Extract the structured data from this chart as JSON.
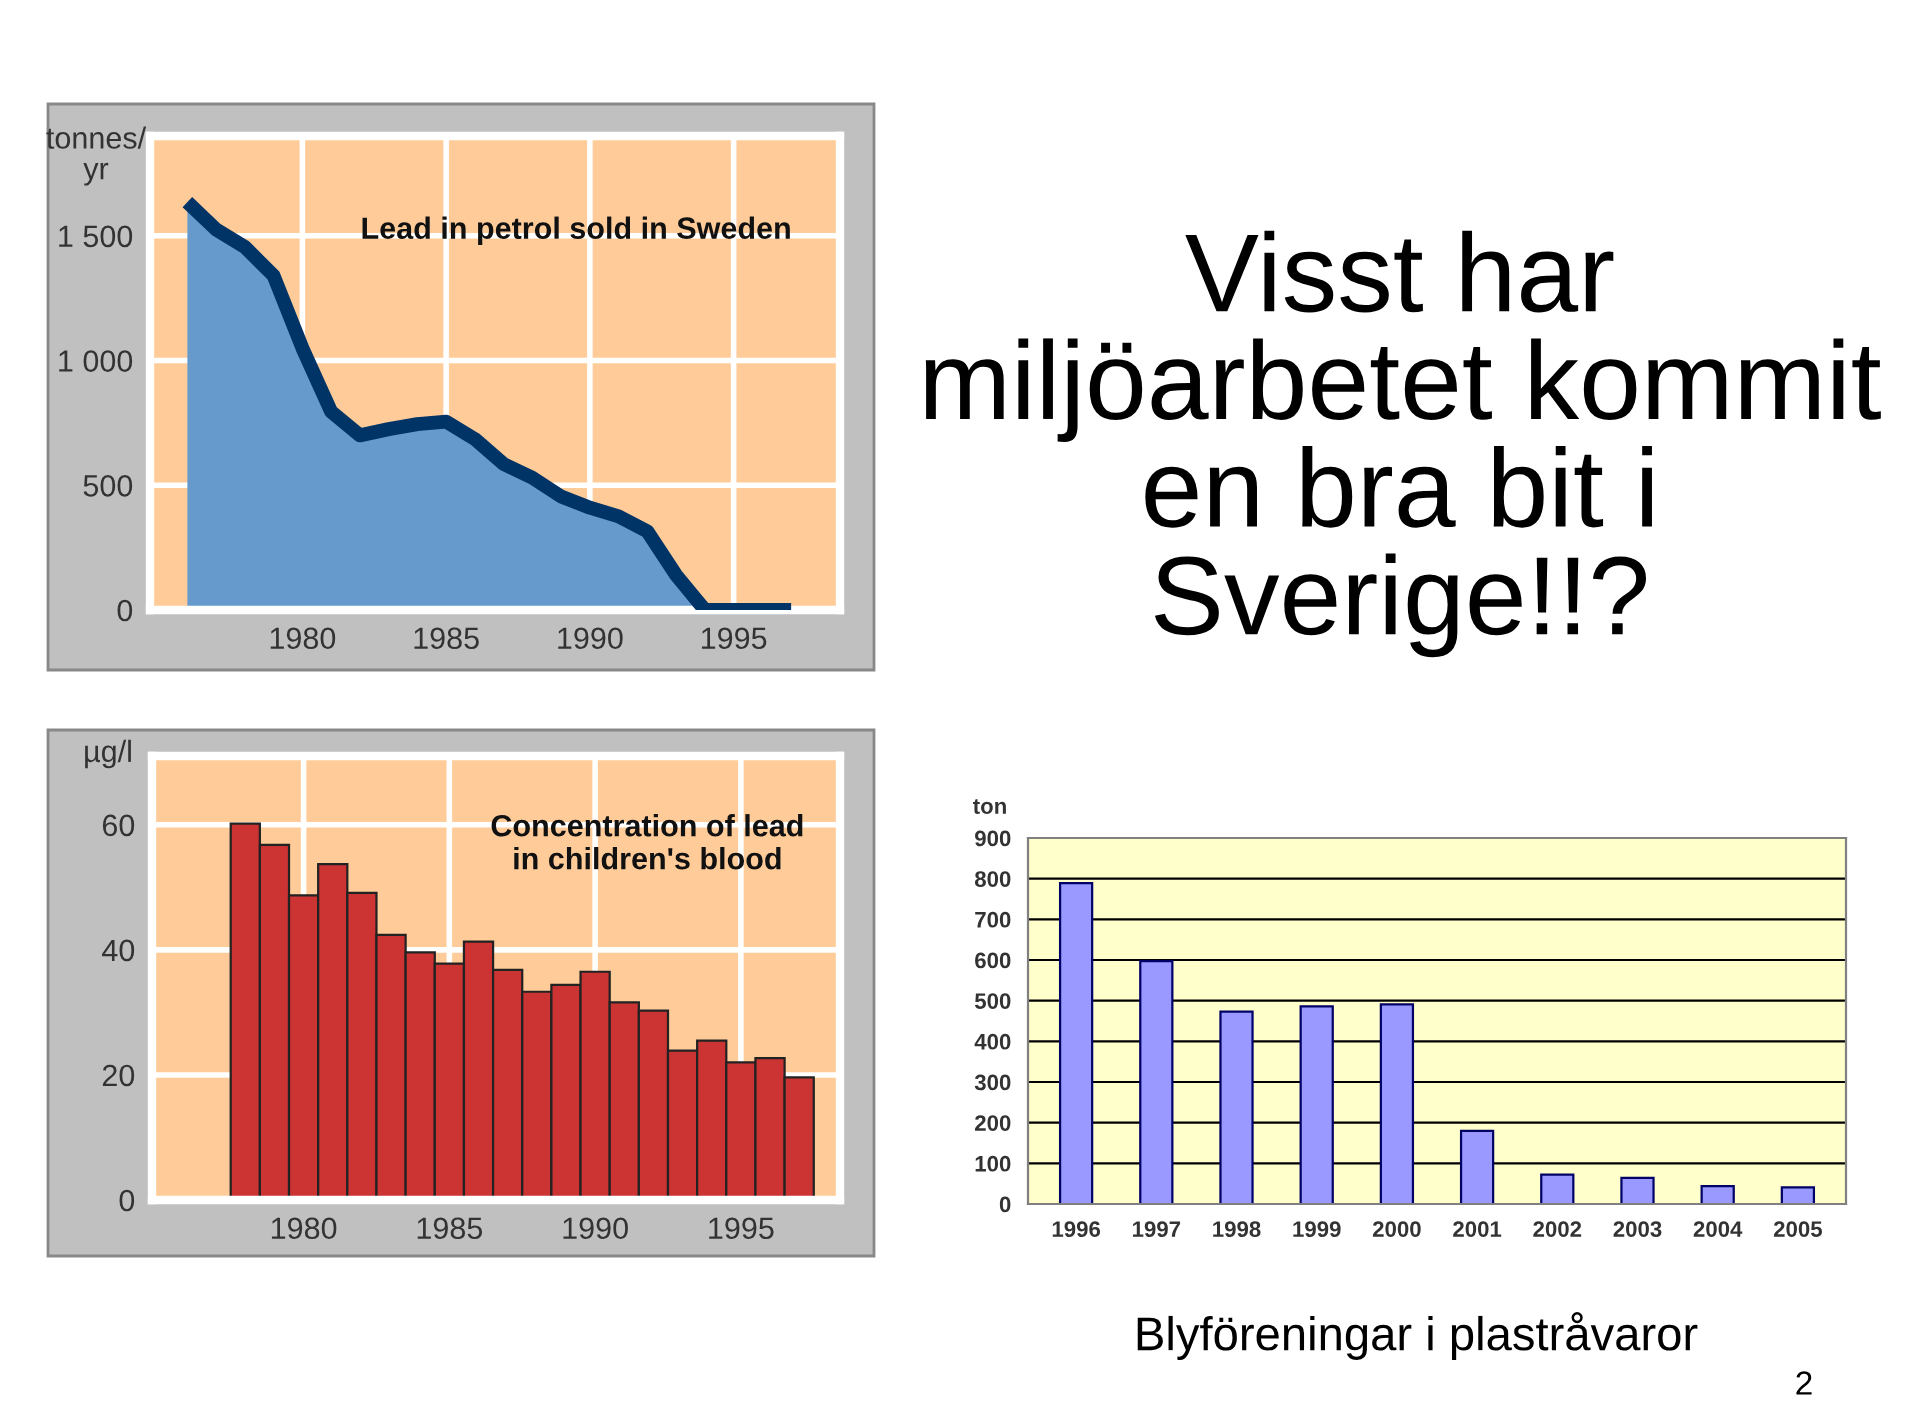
{
  "chart_data": [
    {
      "type": "area",
      "title": "Lead in petrol sold in Sweden",
      "ylabel": "tonnes/\nyr",
      "x": [
        1976,
        1977,
        1978,
        1979,
        1980,
        1981,
        1982,
        1983,
        1984,
        1985,
        1986,
        1987,
        1988,
        1989,
        1990,
        1991,
        1992,
        1993,
        1994,
        1995,
        1996,
        1997
      ],
      "series": [
        {
          "color": "#6699cc",
          "values": [
            1635,
            1525,
            1455,
            1340,
            1050,
            795,
            700,
            725,
            745,
            755,
            685,
            585,
            530,
            455,
            410,
            375,
            315,
            140,
            0,
            0,
            0,
            0
          ]
        }
      ],
      "xlim": [
        1974.7,
        1998.7
      ],
      "ylim": [
        0,
        1900
      ],
      "xticks": [
        1980,
        1985,
        1990,
        1995
      ],
      "yticks": [
        0,
        500,
        {
          "value": 1000,
          "label": "1 000"
        },
        {
          "value": 1500,
          "label": "1 500"
        }
      ],
      "grid": true,
      "annotations": [
        "Visst har\nmiljöarbetet kommit\nen bra bit i\nSverige!!?"
      ]
    },
    {
      "type": "bar",
      "title": "Concentration of lead\nin children's blood",
      "ylabel": "µg/l",
      "x": [
        1978,
        1979,
        1980,
        1981,
        1982,
        1983,
        1984,
        1985,
        1986,
        1987,
        1988,
        1989,
        1990,
        1991,
        1992,
        1993,
        1994,
        1995,
        1996,
        1997
      ],
      "series": [
        {
          "color": "#cc3333",
          "values": [
            60.2,
            56.8,
            48.7,
            53.7,
            49.1,
            42.4,
            39.6,
            37.8,
            41.3,
            36.8,
            33.3,
            34.4,
            36.5,
            31.6,
            30.3,
            23.9,
            25.5,
            22,
            22.7,
            19.6
          ]
        }
      ],
      "xlim": [
        1974.8,
        1998.4
      ],
      "ylim": [
        0,
        71
      ],
      "xticks": [
        1980,
        1985,
        1990,
        1995
      ],
      "yticks": [
        0,
        20,
        40,
        60
      ],
      "grid": true
    },
    {
      "type": "bar",
      "title": "Blyföreningar i plastråvaror",
      "ylabel": "ton",
      "categories": [
        "1996",
        "1997",
        "1998",
        "1999",
        "2000",
        "2001",
        "2002",
        "2003",
        "2004",
        "2005"
      ],
      "series": [
        {
          "color": "#9999ff",
          "values": [
            789,
            597,
            473,
            486,
            491,
            180,
            72,
            64,
            44,
            41
          ]
        }
      ],
      "ylim": [
        0,
        900
      ],
      "yticks": [
        0,
        100,
        200,
        300,
        400,
        500,
        600,
        700,
        800,
        900
      ],
      "grid": "y",
      "annotations": [
        "2"
      ]
    }
  ]
}
